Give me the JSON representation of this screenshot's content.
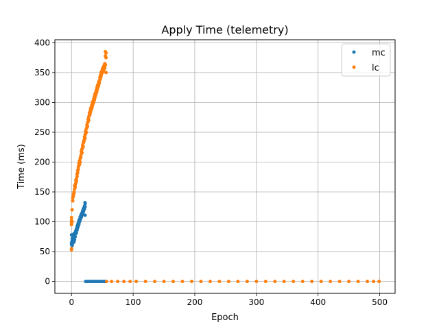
{
  "chart_data": {
    "type": "scatter",
    "title": "Apply Time (telemetry)",
    "xlabel": "Epoch",
    "ylabel": "Time (ms)",
    "xlim": [
      -27,
      525
    ],
    "ylim": [
      -20,
      405
    ],
    "xticks": [
      0,
      100,
      200,
      300,
      400,
      500
    ],
    "xtick_labels": [
      "0",
      "100",
      "200",
      "300",
      "400",
      "500"
    ],
    "yticks": [
      0,
      50,
      100,
      150,
      200,
      250,
      300,
      350,
      400
    ],
    "ytick_labels": [
      "0",
      "50",
      "100",
      "150",
      "200",
      "250",
      "300",
      "350",
      "400"
    ],
    "grid": true,
    "legend_position": "top-right",
    "series": [
      {
        "name": "mc",
        "color": "#1f77b4",
        "points": [
          [
            0,
            62
          ],
          [
            0,
            65
          ],
          [
            0,
            78
          ],
          [
            1,
            68
          ],
          [
            1,
            60
          ],
          [
            1,
            72
          ],
          [
            2,
            64
          ],
          [
            2,
            70
          ],
          [
            3,
            67
          ],
          [
            3,
            75
          ],
          [
            4,
            66
          ],
          [
            4,
            80
          ],
          [
            5,
            70
          ],
          [
            5,
            78
          ],
          [
            6,
            75
          ],
          [
            6,
            82
          ],
          [
            7,
            80
          ],
          [
            7,
            85
          ],
          [
            8,
            82
          ],
          [
            8,
            88
          ],
          [
            9,
            86
          ],
          [
            9,
            92
          ],
          [
            10,
            90
          ],
          [
            10,
            95
          ],
          [
            11,
            93
          ],
          [
            11,
            98
          ],
          [
            12,
            96
          ],
          [
            12,
            102
          ],
          [
            13,
            100
          ],
          [
            13,
            104
          ],
          [
            14,
            103
          ],
          [
            14,
            108
          ],
          [
            15,
            106
          ],
          [
            15,
            110
          ],
          [
            16,
            108
          ],
          [
            16,
            113
          ],
          [
            17,
            111
          ],
          [
            17,
            115
          ],
          [
            18,
            114
          ],
          [
            18,
            118
          ],
          [
            19,
            116
          ],
          [
            19,
            121
          ],
          [
            20,
            119
          ],
          [
            20,
            123
          ],
          [
            21,
            122
          ],
          [
            21,
            126
          ],
          [
            22,
            125
          ],
          [
            22,
            130
          ],
          [
            22,
            132
          ],
          [
            22,
            111
          ],
          [
            23,
            0
          ],
          [
            25,
            0
          ],
          [
            28,
            0
          ],
          [
            30,
            0
          ],
          [
            33,
            0
          ],
          [
            35,
            0
          ],
          [
            38,
            0
          ],
          [
            40,
            0
          ],
          [
            43,
            0
          ],
          [
            45,
            0
          ],
          [
            48,
            0
          ],
          [
            50,
            0
          ],
          [
            53,
            0
          ],
          [
            55,
            0
          ]
        ]
      },
      {
        "name": "lc",
        "color": "#ff7f0e",
        "points": [
          [
            0,
            55
          ],
          [
            0,
            53
          ],
          [
            0,
            95
          ],
          [
            0,
            98
          ],
          [
            0,
            102
          ],
          [
            0,
            107
          ],
          [
            1,
            100
          ],
          [
            1,
            120
          ],
          [
            2,
            140
          ],
          [
            2,
            135
          ],
          [
            3,
            143
          ],
          [
            3,
            146
          ],
          [
            4,
            150
          ],
          [
            4,
            148
          ],
          [
            5,
            155
          ],
          [
            5,
            160
          ],
          [
            6,
            162
          ],
          [
            6,
            158
          ],
          [
            7,
            165
          ],
          [
            7,
            170
          ],
          [
            8,
            172
          ],
          [
            8,
            168
          ],
          [
            9,
            176
          ],
          [
            9,
            180
          ],
          [
            10,
            182
          ],
          [
            10,
            186
          ],
          [
            11,
            188
          ],
          [
            11,
            192
          ],
          [
            12,
            194
          ],
          [
            12,
            198
          ],
          [
            13,
            196
          ],
          [
            13,
            202
          ],
          [
            14,
            200
          ],
          [
            14,
            206
          ],
          [
            15,
            210
          ],
          [
            15,
            208
          ],
          [
            16,
            214
          ],
          [
            16,
            218
          ],
          [
            17,
            216
          ],
          [
            17,
            222
          ],
          [
            18,
            224
          ],
          [
            18,
            228
          ],
          [
            19,
            226
          ],
          [
            19,
            232
          ],
          [
            20,
            234
          ],
          [
            20,
            236
          ],
          [
            21,
            238
          ],
          [
            21,
            242
          ],
          [
            22,
            240
          ],
          [
            22,
            246
          ],
          [
            23,
            248
          ],
          [
            23,
            252
          ],
          [
            24,
            250
          ],
          [
            24,
            256
          ],
          [
            25,
            258
          ],
          [
            25,
            262
          ],
          [
            26,
            260
          ],
          [
            26,
            266
          ],
          [
            27,
            268
          ],
          [
            27,
            272
          ],
          [
            28,
            270
          ],
          [
            28,
            276
          ],
          [
            29,
            278
          ],
          [
            29,
            282
          ],
          [
            30,
            280
          ],
          [
            30,
            285
          ],
          [
            31,
            284
          ],
          [
            31,
            290
          ],
          [
            32,
            288
          ],
          [
            32,
            292
          ],
          [
            33,
            290
          ],
          [
            33,
            296
          ],
          [
            34,
            294
          ],
          [
            34,
            300
          ],
          [
            35,
            298
          ],
          [
            35,
            302
          ],
          [
            36,
            300
          ],
          [
            36,
            306
          ],
          [
            37,
            304
          ],
          [
            37,
            310
          ],
          [
            38,
            308
          ],
          [
            38,
            314
          ],
          [
            39,
            312
          ],
          [
            39,
            316
          ],
          [
            40,
            315
          ],
          [
            40,
            320
          ],
          [
            41,
            318
          ],
          [
            41,
            324
          ],
          [
            42,
            322
          ],
          [
            42,
            328
          ],
          [
            43,
            326
          ],
          [
            43,
            330
          ],
          [
            44,
            328
          ],
          [
            44,
            334
          ],
          [
            45,
            332
          ],
          [
            45,
            336
          ],
          [
            46,
            338
          ],
          [
            46,
            342
          ],
          [
            47,
            340
          ],
          [
            47,
            346
          ],
          [
            48,
            344
          ],
          [
            48,
            350
          ],
          [
            49,
            348
          ],
          [
            49,
            352
          ],
          [
            50,
            350
          ],
          [
            50,
            356
          ],
          [
            51,
            354
          ],
          [
            51,
            358
          ],
          [
            52,
            352
          ],
          [
            52,
            360
          ],
          [
            53,
            356
          ],
          [
            53,
            362
          ],
          [
            54,
            358
          ],
          [
            54,
            365
          ],
          [
            55,
            363
          ],
          [
            55,
            378
          ],
          [
            55,
            385
          ],
          [
            56,
            383
          ],
          [
            56,
            350
          ],
          [
            56,
            375
          ],
          [
            57,
            0
          ],
          [
            65,
            0
          ],
          [
            75,
            0
          ],
          [
            85,
            0
          ],
          [
            95,
            0
          ],
          [
            105,
            0
          ],
          [
            120,
            0
          ],
          [
            135,
            0
          ],
          [
            150,
            0
          ],
          [
            165,
            0
          ],
          [
            180,
            0
          ],
          [
            195,
            0
          ],
          [
            210,
            0
          ],
          [
            225,
            0
          ],
          [
            240,
            0
          ],
          [
            255,
            0
          ],
          [
            270,
            0
          ],
          [
            285,
            0
          ],
          [
            300,
            0
          ],
          [
            315,
            0
          ],
          [
            330,
            0
          ],
          [
            345,
            0
          ],
          [
            360,
            0
          ],
          [
            375,
            0
          ],
          [
            390,
            0
          ],
          [
            405,
            0
          ],
          [
            420,
            0
          ],
          [
            435,
            0
          ],
          [
            450,
            0
          ],
          [
            465,
            0
          ],
          [
            480,
            0
          ],
          [
            490,
            0
          ],
          [
            499,
            0
          ]
        ]
      }
    ]
  }
}
